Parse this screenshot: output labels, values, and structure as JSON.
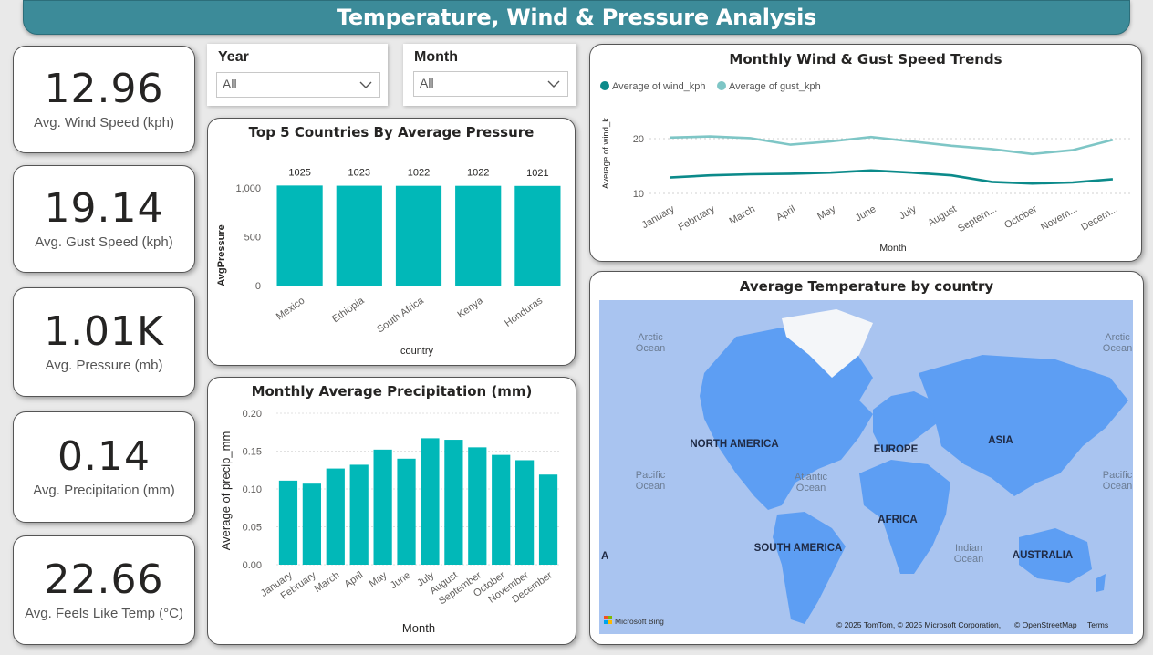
{
  "header": {
    "title": "Temperature, Wind & Pressure Analysis"
  },
  "kpis": [
    {
      "value": "12.96",
      "label": "Avg. Wind Speed (kph)"
    },
    {
      "value": "19.14",
      "label": "Avg. Gust Speed (kph)"
    },
    {
      "value": "1.01K",
      "label": "Avg. Pressure (mb)"
    },
    {
      "value": "0.14",
      "label": "Avg. Precipitation (mm)"
    },
    {
      "value": "22.66",
      "label": "Avg. Feels Like Temp (°C)"
    }
  ],
  "slicers": {
    "year": {
      "title": "Year",
      "value": "All"
    },
    "month": {
      "title": "Month",
      "value": "All"
    }
  },
  "colors": {
    "header": "#3c8b99",
    "bar": "#01b8b8",
    "wind": "#0b8a8a",
    "gust": "#7ec6c6",
    "land": "#5d9ef3",
    "ocean": "#a9c4f0"
  },
  "pressure_chart": {
    "title": "Top 5 Countries By Average Pressure",
    "ylabel": "AvgPressure",
    "xlabel": "country",
    "yticks": [
      "0",
      "500",
      "1,000"
    ]
  },
  "wind_chart": {
    "title": "Monthly Wind & Gust Speed Trends",
    "ylabel": "Average of wind_k...",
    "xlabel": "Month",
    "legend": [
      "Average of wind_kph",
      "Average of gust_kph"
    ],
    "yticks": [
      "10",
      "20"
    ],
    "xticklabels": [
      "January",
      "February",
      "March",
      "April",
      "May",
      "June",
      "July",
      "August",
      "Septem...",
      "October",
      "Novem...",
      "Decem..."
    ]
  },
  "precip_chart": {
    "title": "Monthly Average Precipitation (mm)",
    "ylabel": "Average of precip_mm",
    "xlabel": "Month",
    "yticks": [
      "0.00",
      "0.05",
      "0.10",
      "0.15",
      "0.20"
    ]
  },
  "map": {
    "title": "Average Temperature by country",
    "labels": {
      "north_america": "NORTH AMERICA",
      "south_america": "SOUTH AMERICA",
      "europe": "EUROPE",
      "asia": "ASIA",
      "africa": "AFRICA",
      "australia": "AUSTRALIA",
      "arctic_left": "Arctic\nOcean",
      "arctic_right": "Arctic\nOcean",
      "pacific_left": "Pacific\nOcean",
      "pacific_right": "Pacific\nOcean",
      "atlantic": "Atlantic\nOcean",
      "indian": "Indian\nOcean",
      "edge_a": "A"
    },
    "logo": "Microsoft Bing",
    "attribution": "© 2025 TomTom, © 2025 Microsoft Corporation,",
    "osm": "© OpenStreetMap",
    "terms": "Terms"
  },
  "chart_data": [
    {
      "type": "bar",
      "title": "Top 5 Countries By Average Pressure",
      "categories": [
        "Mexico",
        "Ethiopia",
        "South Africa",
        "Kenya",
        "Honduras"
      ],
      "values": [
        1025,
        1023,
        1022,
        1022,
        1021
      ],
      "xlabel": "country",
      "ylabel": "AvgPressure",
      "ylim": [
        0,
        1150
      ]
    },
    {
      "type": "line",
      "title": "Monthly Wind & Gust Speed Trends",
      "categories": [
        "January",
        "February",
        "March",
        "April",
        "May",
        "June",
        "July",
        "August",
        "September",
        "October",
        "November",
        "December"
      ],
      "series": [
        {
          "name": "Average of wind_kph",
          "values": [
            12.9,
            13.3,
            13.5,
            13.6,
            13.8,
            14.2,
            13.8,
            13.3,
            12.1,
            11.8,
            12.0,
            12.6
          ]
        },
        {
          "name": "Average of gust_kph",
          "values": [
            20.2,
            20.4,
            20.1,
            18.9,
            19.5,
            20.3,
            19.5,
            18.7,
            18.1,
            17.2,
            17.9,
            19.8
          ]
        }
      ],
      "xlabel": "Month",
      "ylabel": "Average of wind_k...",
      "ylim": [
        8,
        23
      ]
    },
    {
      "type": "bar",
      "title": "Monthly Average Precipitation (mm)",
      "categories": [
        "January",
        "February",
        "March",
        "April",
        "May",
        "June",
        "July",
        "August",
        "September",
        "October",
        "November",
        "December"
      ],
      "values": [
        0.111,
        0.107,
        0.127,
        0.132,
        0.152,
        0.14,
        0.167,
        0.165,
        0.155,
        0.145,
        0.138,
        0.119
      ],
      "xlabel": "Month",
      "ylabel": "Average of precip_mm",
      "ylim": [
        0,
        0.2
      ]
    }
  ]
}
